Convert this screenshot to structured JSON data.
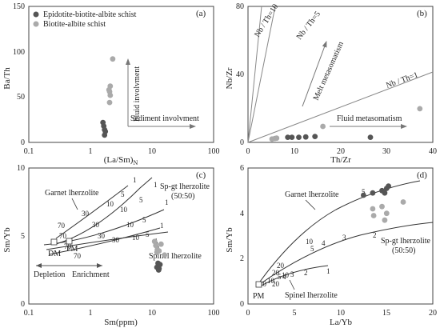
{
  "chart_data": [
    {
      "panel": "(a)",
      "type": "scatter",
      "x_scale": "log",
      "xlabel": "(La/Sm)N",
      "ylabel": "Ba/Th",
      "xlim": [
        0.1,
        100
      ],
      "ylim": [
        0,
        150
      ],
      "x_ticks": [
        "0.1",
        "1",
        "10",
        "100"
      ],
      "y_ticks": [
        "0",
        "50",
        "100",
        "150"
      ],
      "legend": [
        "Epidotite-biotite-albite schist",
        "Biotite-albite schist"
      ],
      "series": [
        {
          "name": "Epidotite-biotite-albite schist",
          "color": "#555555",
          "points": [
            [
              1.6,
              22
            ],
            [
              1.65,
              18
            ],
            [
              1.7,
              14
            ],
            [
              1.7,
              8
            ],
            [
              1.75,
              12
            ]
          ]
        },
        {
          "name": "Biotite-albite schist",
          "color": "#aaaaaa",
          "points": [
            [
              2.3,
              92
            ],
            [
              2.1,
              62
            ],
            [
              2.05,
              56
            ],
            [
              2.1,
              52
            ],
            [
              2.05,
              44
            ],
            [
              2.0,
              58
            ]
          ]
        }
      ],
      "annotations": [
        "Fluid involvment",
        "Sediment involvment"
      ]
    },
    {
      "panel": "(b)",
      "type": "scatter",
      "xlabel": "Th/Zr",
      "ylabel": "Nb/Zr",
      "xlim": [
        0,
        40
      ],
      "ylim": [
        0,
        80
      ],
      "x_ticks": [
        "0",
        "10",
        "20",
        "30",
        "40"
      ],
      "y_ticks": [
        "0",
        "40",
        "80"
      ],
      "reference_lines": [
        "Nb / Th=10",
        "Nb / Th=5",
        "Nb / Th=1"
      ],
      "series": [
        {
          "name": "Epidotite-biotite-albite schist",
          "color": "#555555",
          "points": [
            [
              8.6,
              3
            ],
            [
              9.5,
              3
            ],
            [
              11,
              3
            ],
            [
              12.5,
              3.2
            ],
            [
              14.5,
              3.5
            ],
            [
              26.5,
              3
            ]
          ]
        },
        {
          "name": "Biotite-albite schist",
          "color": "#aaaaaa",
          "points": [
            [
              5.2,
              2
            ],
            [
              5.8,
              2.3
            ],
            [
              6.2,
              2.5
            ],
            [
              16.2,
              9.4
            ],
            [
              37.2,
              19.8
            ]
          ]
        }
      ],
      "annotations": [
        "Melt metasomatism",
        "Fluid metasomatism"
      ]
    },
    {
      "panel": "(c)",
      "type": "scatter",
      "x_scale": "log",
      "xlabel": "Sm(ppm)",
      "ylabel": "Sm/Yb",
      "xlim": [
        0.1,
        100
      ],
      "ylim": [
        0,
        10
      ],
      "x_ticks": [
        "0.1",
        "1",
        "10",
        "100"
      ],
      "y_ticks": [
        "0",
        "5",
        "10"
      ],
      "model_curves": [
        "Garnet lherzolite",
        "Sp-gt lherzolite (50:50)",
        "Spinel lherzolite"
      ],
      "curve_labels": [
        "1",
        "5",
        "10",
        "30",
        "70",
        "1",
        "5",
        "10",
        "30",
        "70",
        "1",
        "5",
        "10",
        "30",
        "70",
        "1",
        "5",
        "10",
        "30",
        "70"
      ],
      "reference_points": [
        "DM",
        "PM"
      ],
      "series": [
        {
          "name": "Epidotite-biotite-albite schist",
          "color": "#555555",
          "points": [
            [
              12.0,
              2.7
            ],
            [
              12.5,
              3.0
            ],
            [
              13.0,
              2.6
            ],
            [
              13.5,
              2.9
            ],
            [
              12.8,
              2.5
            ]
          ]
        },
        {
          "name": "Biotite-albite schist",
          "color": "#aaaaaa",
          "points": [
            [
              11.0,
              4.6
            ],
            [
              11.5,
              4.3
            ],
            [
              12.2,
              4.0
            ],
            [
              13.0,
              3.9
            ],
            [
              14.0,
              4.4
            ],
            [
              16.0,
              3.6
            ],
            [
              12.0,
              3.8
            ]
          ]
        }
      ],
      "annotations": [
        "Depletion",
        "Enrichment"
      ]
    },
    {
      "panel": "(d)",
      "type": "scatter",
      "xlabel": "La/Yb",
      "ylabel": "Sm/Yb",
      "xlim": [
        0,
        20
      ],
      "ylim": [
        0,
        6
      ],
      "x_ticks": [
        "0",
        "5",
        "10",
        "15",
        "20"
      ],
      "y_ticks": [
        "0",
        "2",
        "4",
        "6"
      ],
      "model_curves": [
        "Garnet lherzolite",
        "Sp-gt lherzolite (50:50)",
        "Spinel lherzolite"
      ],
      "curve_labels": [
        "40",
        "20",
        "10",
        "5",
        "20",
        "10",
        "5",
        "4",
        "3",
        "2",
        "20",
        "10",
        "5",
        "4",
        "3",
        "2",
        "1"
      ],
      "reference_points": [
        "PM"
      ],
      "series": [
        {
          "name": "Epidotite-biotite-albite schist",
          "color": "#555555",
          "points": [
            [
              12.5,
              4.8
            ],
            [
              13.5,
              4.9
            ],
            [
              14.5,
              5.0
            ],
            [
              15.0,
              5.1
            ],
            [
              14.8,
              4.9
            ],
            [
              15.2,
              5.2
            ]
          ]
        },
        {
          "name": "Biotite-albite schist",
          "color": "#aaaaaa",
          "points": [
            [
              13.5,
              4.2
            ],
            [
              13.6,
              3.9
            ],
            [
              14.5,
              4.3
            ],
            [
              14.8,
              3.7
            ],
            [
              15.0,
              4.0
            ],
            [
              16.8,
              4.5
            ]
          ]
        }
      ]
    }
  ]
}
